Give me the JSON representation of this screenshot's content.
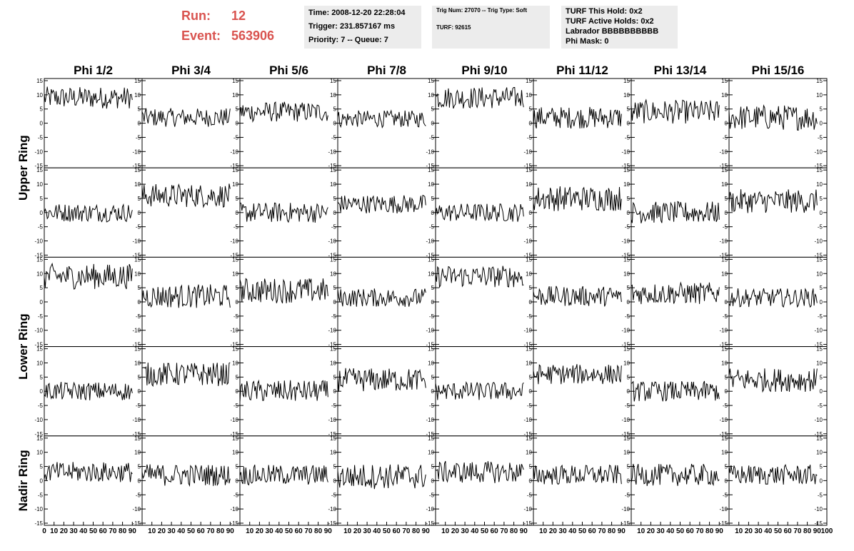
{
  "header": {
    "run_label": "Run:",
    "run_value": "12",
    "event_label": "Event:",
    "event_value": "563906",
    "time": "Time: 2008-12-20 22:28:04",
    "trigger": "Trigger: 231.857167 ms",
    "priority": "Priority: 7 -- Queue: 7",
    "trig_num": "Trig Num: 27070 -- Trig Type: Soft",
    "turf": "TURF: 92615",
    "turf_this_hold": "TURF This Hold: 0x2",
    "turf_active_holds": "TURF Active Holds: 0x2",
    "labrador": "Labrador BBBBBBBBBB",
    "phi_mask": "Phi Mask: 0",
    "accent_color": "#d9534f",
    "box_color": "#ececec"
  },
  "chart_data": {
    "type": "line",
    "columns": [
      "Phi 1/2",
      "Phi 3/4",
      "Phi 5/6",
      "Phi 7/8",
      "Phi 9/10",
      "Phi 11/12",
      "Phi 13/14",
      "Phi 15/16"
    ],
    "rows": [
      "Upper Ring",
      "Lower Ring",
      "Nadir Ring"
    ],
    "subrows_per_ring": [
      2,
      2,
      1
    ],
    "x_range": [
      0,
      100
    ],
    "y_range": [
      -15,
      15
    ],
    "y_ticks": [
      -15,
      -10,
      -5,
      0,
      5,
      10,
      15
    ],
    "x_ticks": [
      0,
      10,
      20,
      30,
      40,
      50,
      60,
      70,
      80,
      90,
      100
    ],
    "samples_per_trace": 90,
    "trace_color": "#000000",
    "panels": [
      [
        {
          "base": 9,
          "amp": 2.6
        },
        {
          "base": 2,
          "amp": 2.2
        },
        {
          "base": 4,
          "amp": 2.4
        },
        {
          "base": 1.5,
          "amp": 2.0
        },
        {
          "base": 9,
          "amp": 2.6
        },
        {
          "base": 2,
          "amp": 2.6
        },
        {
          "base": 4,
          "amp": 2.8
        },
        {
          "base": 2,
          "amp": 3.0
        }
      ],
      [
        {
          "base": 0,
          "amp": 2.2
        },
        {
          "base": 6,
          "amp": 2.8
        },
        {
          "base": 0,
          "amp": 2.4
        },
        {
          "base": 3,
          "amp": 2.2
        },
        {
          "base": 0,
          "amp": 2.2
        },
        {
          "base": 5,
          "amp": 3.0
        },
        {
          "base": 0,
          "amp": 2.6
        },
        {
          "base": 4,
          "amp": 2.8
        }
      ],
      [
        {
          "base": 9,
          "amp": 3.0
        },
        {
          "base": 2,
          "amp": 2.8
        },
        {
          "base": 4,
          "amp": 3.0
        },
        {
          "base": 1.5,
          "amp": 2.2
        },
        {
          "base": 9,
          "amp": 2.6
        },
        {
          "base": 2,
          "amp": 2.4
        },
        {
          "base": 3,
          "amp": 2.6
        },
        {
          "base": 1.5,
          "amp": 2.2
        }
      ],
      [
        {
          "base": 0,
          "amp": 2.2
        },
        {
          "base": 6,
          "amp": 2.8
        },
        {
          "base": 0,
          "amp": 2.6
        },
        {
          "base": 4,
          "amp": 2.8
        },
        {
          "base": 0,
          "amp": 2.2
        },
        {
          "base": 6,
          "amp": 2.4
        },
        {
          "base": 0,
          "amp": 2.4
        },
        {
          "base": 4,
          "amp": 2.8
        }
      ],
      [
        {
          "base": 3,
          "amp": 2.4
        },
        {
          "base": 2,
          "amp": 2.6
        },
        {
          "base": 2,
          "amp": 2.4
        },
        {
          "base": 1.5,
          "amp": 3.0
        },
        {
          "base": 3,
          "amp": 2.6
        },
        {
          "base": 2,
          "amp": 2.4
        },
        {
          "base": 2,
          "amp": 2.6
        },
        {
          "base": 2,
          "amp": 2.4
        }
      ]
    ]
  }
}
